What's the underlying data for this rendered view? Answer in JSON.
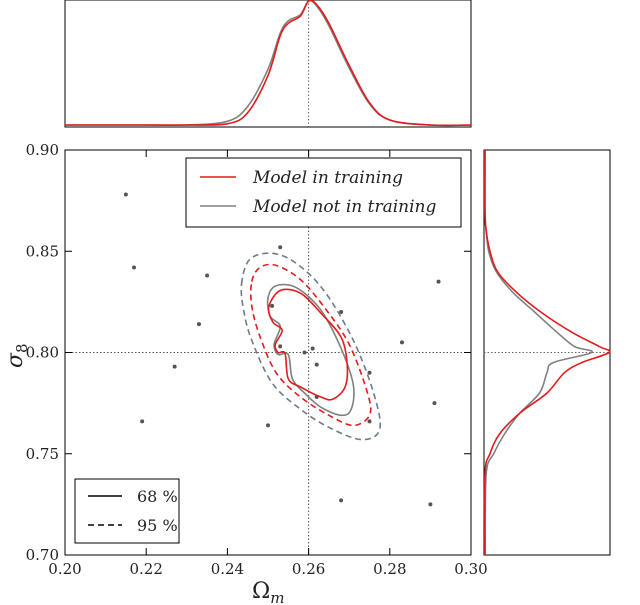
{
  "chart_data": {
    "type": "scatter",
    "xlabel": "Ω",
    "xlabel_sub": "m",
    "ylabel": "σ",
    "ylabel_sub": "8",
    "xlim": [
      0.2,
      0.3
    ],
    "ylim": [
      0.7,
      0.9
    ],
    "xticks": [
      "0.20",
      "0.22",
      "0.24",
      "0.26",
      "0.28",
      "0.30"
    ],
    "yticks": [
      "0.70",
      "0.75",
      "0.80",
      "0.85",
      "0.90"
    ],
    "fiducial": {
      "x": 0.26,
      "y": 0.8
    },
    "legend_position": "top-right",
    "series": [
      {
        "name": "Model in training",
        "color": "#e41a1c"
      },
      {
        "name": "Model not in training",
        "color": "#808080"
      }
    ],
    "line_styles": [
      {
        "label": "68 %",
        "style": "solid"
      },
      {
        "label": "95 %",
        "style": "dashed"
      }
    ],
    "scatter_points": [
      {
        "x": 0.215,
        "y": 0.878
      },
      {
        "x": 0.217,
        "y": 0.842
      },
      {
        "x": 0.219,
        "y": 0.766
      },
      {
        "x": 0.227,
        "y": 0.793
      },
      {
        "x": 0.233,
        "y": 0.814
      },
      {
        "x": 0.235,
        "y": 0.838
      },
      {
        "x": 0.25,
        "y": 0.764
      },
      {
        "x": 0.251,
        "y": 0.823
      },
      {
        "x": 0.253,
        "y": 0.852
      },
      {
        "x": 0.253,
        "y": 0.803
      },
      {
        "x": 0.259,
        "y": 0.8
      },
      {
        "x": 0.261,
        "y": 0.802
      },
      {
        "x": 0.262,
        "y": 0.794
      },
      {
        "x": 0.262,
        "y": 0.778
      },
      {
        "x": 0.268,
        "y": 0.82
      },
      {
        "x": 0.268,
        "y": 0.727
      },
      {
        "x": 0.275,
        "y": 0.766
      },
      {
        "x": 0.275,
        "y": 0.79
      },
      {
        "x": 0.283,
        "y": 0.805
      },
      {
        "x": 0.29,
        "y": 0.725
      },
      {
        "x": 0.291,
        "y": 0.775
      },
      {
        "x": 0.292,
        "y": 0.835
      }
    ],
    "contours": {
      "red_68": [
        [
          0.2502,
          0.8225
        ],
        [
          0.253,
          0.8306
        ],
        [
          0.258,
          0.8293
        ],
        [
          0.263,
          0.8195
        ],
        [
          0.268,
          0.8075
        ],
        [
          0.2695,
          0.794
        ],
        [
          0.269,
          0.783
        ],
        [
          0.266,
          0.777
        ],
        [
          0.263,
          0.778
        ],
        [
          0.258,
          0.783
        ],
        [
          0.255,
          0.787
        ],
        [
          0.2542,
          0.7995
        ],
        [
          0.2525,
          0.8
        ],
        [
          0.2518,
          0.804
        ],
        [
          0.2535,
          0.811
        ],
        [
          0.2512,
          0.815
        ],
        [
          0.2502,
          0.8225
        ]
      ],
      "grey_68": [
        [
          0.25,
          0.827
        ],
        [
          0.252,
          0.833
        ],
        [
          0.257,
          0.832
        ],
        [
          0.263,
          0.821
        ],
        [
          0.268,
          0.802
        ],
        [
          0.271,
          0.784
        ],
        [
          0.2705,
          0.772
        ],
        [
          0.268,
          0.769
        ],
        [
          0.263,
          0.773
        ],
        [
          0.259,
          0.78
        ],
        [
          0.256,
          0.787
        ],
        [
          0.255,
          0.799
        ],
        [
          0.2525,
          0.799
        ],
        [
          0.2515,
          0.804
        ],
        [
          0.253,
          0.813
        ],
        [
          0.2505,
          0.818
        ],
        [
          0.25,
          0.827
        ]
      ],
      "red_95": [
        [
          0.246,
          0.835
        ],
        [
          0.248,
          0.842
        ],
        [
          0.252,
          0.843
        ],
        [
          0.258,
          0.836
        ],
        [
          0.264,
          0.822
        ],
        [
          0.27,
          0.804
        ],
        [
          0.2745,
          0.78
        ],
        [
          0.275,
          0.769
        ],
        [
          0.271,
          0.764
        ],
        [
          0.265,
          0.769
        ],
        [
          0.258,
          0.778
        ],
        [
          0.252,
          0.79
        ],
        [
          0.248,
          0.808
        ],
        [
          0.246,
          0.823
        ],
        [
          0.246,
          0.835
        ]
      ],
      "grey_95": [
        [
          0.2435,
          0.834
        ],
        [
          0.2455,
          0.846
        ],
        [
          0.251,
          0.849
        ],
        [
          0.257,
          0.844
        ],
        [
          0.264,
          0.83
        ],
        [
          0.271,
          0.806
        ],
        [
          0.276,
          0.78
        ],
        [
          0.2775,
          0.762
        ],
        [
          0.273,
          0.757
        ],
        [
          0.265,
          0.763
        ],
        [
          0.258,
          0.772
        ],
        [
          0.251,
          0.785
        ],
        [
          0.246,
          0.806
        ],
        [
          0.244,
          0.821
        ],
        [
          0.2435,
          0.834
        ]
      ]
    },
    "marginal_x": {
      "x": [
        0.2,
        0.21,
        0.22,
        0.23,
        0.24,
        0.245,
        0.25,
        0.253,
        0.255,
        0.258,
        0.26,
        0.262,
        0.265,
        0.27,
        0.275,
        0.28,
        0.29,
        0.3
      ],
      "red": [
        0,
        0,
        0,
        0,
        0.01,
        0.1,
        0.4,
        0.72,
        0.82,
        0.88,
        1.0,
        0.97,
        0.82,
        0.48,
        0.18,
        0.04,
        0,
        0
      ],
      "grey": [
        0,
        0,
        0,
        0,
        0.03,
        0.15,
        0.45,
        0.74,
        0.84,
        0.89,
        1.0,
        0.96,
        0.8,
        0.46,
        0.17,
        0.04,
        0,
        0
      ]
    },
    "marginal_y": {
      "y": [
        0.7,
        0.74,
        0.75,
        0.76,
        0.77,
        0.78,
        0.79,
        0.795,
        0.8,
        0.803,
        0.81,
        0.82,
        0.83,
        0.84,
        0.85,
        0.86,
        0.87,
        0.9
      ],
      "red": [
        0,
        0,
        0.04,
        0.12,
        0.28,
        0.5,
        0.64,
        0.78,
        1.0,
        0.92,
        0.7,
        0.45,
        0.25,
        0.1,
        0.04,
        0.01,
        0,
        0
      ],
      "grey": [
        0,
        0.01,
        0.07,
        0.16,
        0.28,
        0.44,
        0.5,
        0.55,
        0.86,
        0.72,
        0.58,
        0.4,
        0.22,
        0.09,
        0.03,
        0.01,
        0,
        0
      ]
    }
  }
}
